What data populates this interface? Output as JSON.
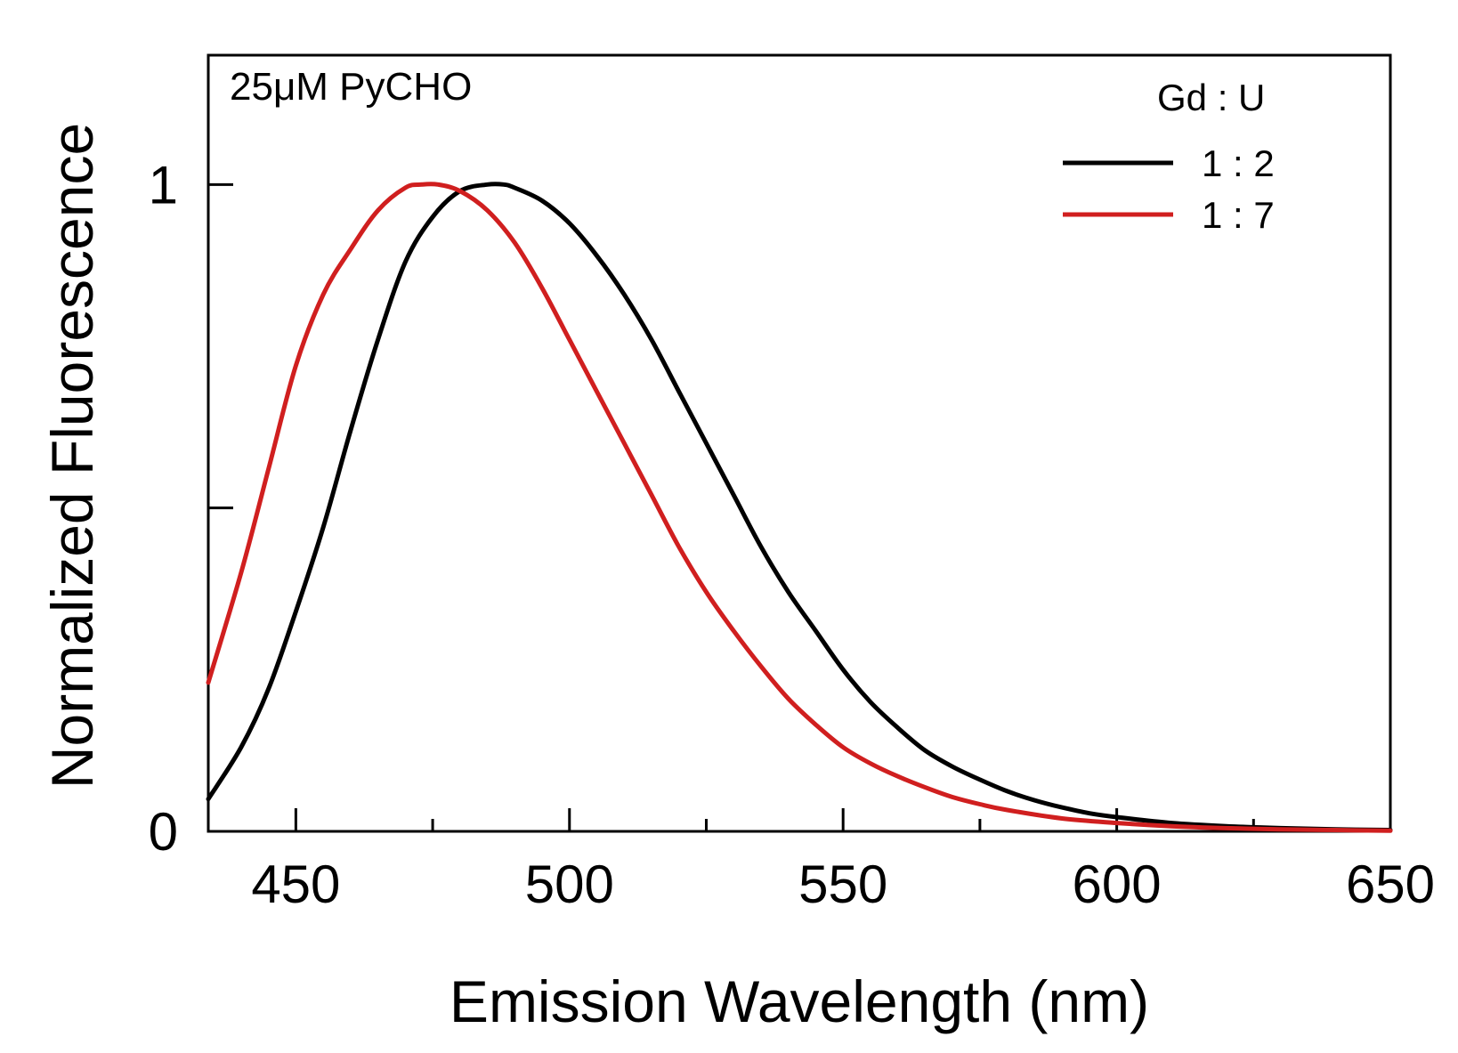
{
  "chart_data": {
    "type": "line",
    "title": "",
    "annotation": "25μM PyCHO",
    "xlabel": "Emission Wavelength (nm)",
    "ylabel": "Normalized Fluorescence",
    "xlim": [
      434,
      650
    ],
    "ylim": [
      0,
      1.2
    ],
    "x_ticks_major": [
      450,
      500,
      550,
      600,
      650
    ],
    "x_ticks_minor": [
      475,
      525,
      575,
      625
    ],
    "x_tick_labels": [
      "450",
      "500",
      "550",
      "600",
      "650"
    ],
    "y_ticks": [
      0,
      0.5,
      1
    ],
    "y_tick_labels": [
      "0",
      "",
      "1"
    ],
    "legend": {
      "title": "Gd : U",
      "position": "top-right"
    },
    "series": [
      {
        "name": "1 : 2",
        "color": "#000000",
        "x": [
          434,
          440,
          445,
          450,
          455,
          460,
          465,
          470,
          475,
          480,
          485,
          488,
          490,
          495,
          500,
          505,
          510,
          515,
          520,
          525,
          530,
          535,
          540,
          545,
          550,
          555,
          560,
          565,
          570,
          575,
          580,
          585,
          590,
          595,
          600,
          610,
          620,
          630,
          640,
          650
        ],
        "values": [
          0.05,
          0.13,
          0.22,
          0.34,
          0.47,
          0.62,
          0.76,
          0.88,
          0.95,
          0.99,
          1.0,
          1.0,
          0.995,
          0.975,
          0.94,
          0.89,
          0.83,
          0.76,
          0.68,
          0.6,
          0.52,
          0.44,
          0.37,
          0.31,
          0.25,
          0.2,
          0.16,
          0.125,
          0.1,
          0.08,
          0.062,
          0.048,
          0.037,
          0.028,
          0.022,
          0.013,
          0.008,
          0.005,
          0.003,
          0.002
        ]
      },
      {
        "name": "1 : 7",
        "color": "#d01f1f",
        "x": [
          434,
          440,
          445,
          450,
          455,
          460,
          465,
          470,
          473,
          476,
          480,
          485,
          490,
          495,
          500,
          505,
          510,
          515,
          520,
          525,
          530,
          535,
          540,
          545,
          550,
          555,
          560,
          565,
          570,
          575,
          580,
          590,
          600,
          610,
          620,
          630,
          640,
          650
        ],
        "values": [
          0.23,
          0.4,
          0.56,
          0.72,
          0.83,
          0.9,
          0.96,
          0.995,
          1.0,
          1.0,
          0.99,
          0.96,
          0.91,
          0.84,
          0.76,
          0.68,
          0.6,
          0.52,
          0.44,
          0.37,
          0.31,
          0.255,
          0.205,
          0.165,
          0.13,
          0.105,
          0.085,
          0.068,
          0.053,
          0.042,
          0.033,
          0.02,
          0.013,
          0.008,
          0.005,
          0.003,
          0.002,
          0.001
        ]
      }
    ]
  }
}
